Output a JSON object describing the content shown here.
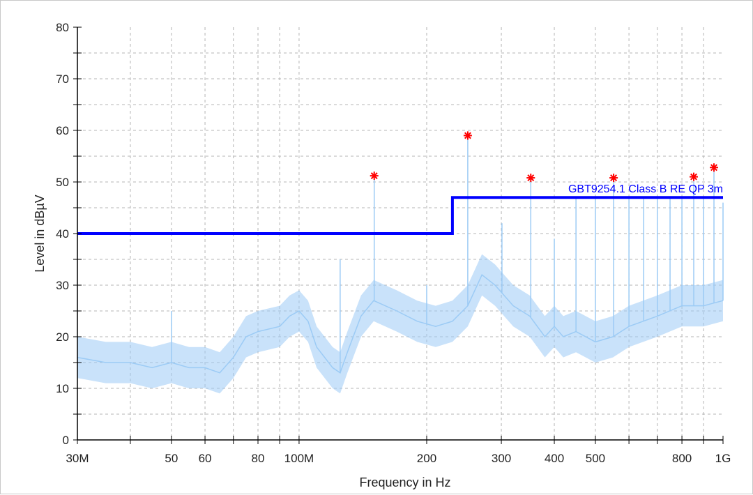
{
  "chart_data": {
    "type": "line",
    "title": "",
    "xlabel": "Frequency in Hz",
    "ylabel": "Level in dBµV",
    "x_scale": "log",
    "xlim_hz": [
      30000000,
      1000000000
    ],
    "ylim": [
      0,
      80
    ],
    "grid": true,
    "y_ticks": [
      0,
      10,
      20,
      30,
      40,
      50,
      60,
      70,
      80
    ],
    "x_ticks": [
      {
        "value_mhz": 30,
        "label": "30M"
      },
      {
        "value_mhz": 50,
        "label": "50"
      },
      {
        "value_mhz": 60,
        "label": "60"
      },
      {
        "value_mhz": 80,
        "label": "80"
      },
      {
        "value_mhz": 100,
        "label": "100M"
      },
      {
        "value_mhz": 200,
        "label": "200"
      },
      {
        "value_mhz": 300,
        "label": "300"
      },
      {
        "value_mhz": 400,
        "label": "400"
      },
      {
        "value_mhz": 500,
        "label": "500"
      },
      {
        "value_mhz": 800,
        "label": "800"
      },
      {
        "value_mhz": 1000,
        "label": "1G"
      }
    ],
    "limit_line": {
      "label": "GBT9254.1 Class B  RE  QP  3m",
      "color": "#0000ff",
      "points_mhz_db": [
        [
          30,
          40
        ],
        [
          230,
          40
        ],
        [
          230,
          47
        ],
        [
          1000,
          47
        ]
      ]
    },
    "trace": {
      "color": "#9ccbf5",
      "freq_mhz": [
        30,
        35,
        40,
        45,
        50,
        55,
        60,
        65,
        70,
        75,
        80,
        90,
        95,
        100,
        105,
        110,
        120,
        125,
        130,
        140,
        150,
        170,
        190,
        210,
        230,
        250,
        270,
        290,
        320,
        350,
        380,
        400,
        420,
        450,
        500,
        550,
        600,
        700,
        800,
        900,
        1000
      ],
      "level_db": [
        16,
        15,
        15,
        14,
        15,
        14,
        14,
        13,
        16,
        20,
        21,
        22,
        24,
        25,
        23,
        18,
        14,
        13,
        17,
        24,
        27,
        25,
        23,
        22,
        23,
        26,
        32,
        30,
        26,
        24,
        20,
        22,
        20,
        21,
        19,
        20,
        22,
        24,
        26,
        26,
        27
      ]
    },
    "spikes": {
      "freq_mhz": [
        50,
        125,
        150.4,
        200,
        250,
        301,
        352,
        400,
        450,
        500,
        552,
        600,
        650,
        700,
        750,
        800,
        853,
        900,
        952,
        1000
      ],
      "level_db": [
        25,
        35,
        51,
        30,
        59,
        42,
        51,
        39,
        47,
        47,
        51,
        47,
        47,
        47,
        47,
        47,
        51,
        47,
        53,
        46
      ]
    },
    "markers": {
      "color": "#ff0000",
      "symbol": "asterisk",
      "freq_mhz": [
        150.4,
        250,
        352,
        552,
        853,
        952
      ],
      "level_db": [
        51.2,
        59,
        50.8,
        50.8,
        51,
        52.8
      ]
    }
  }
}
